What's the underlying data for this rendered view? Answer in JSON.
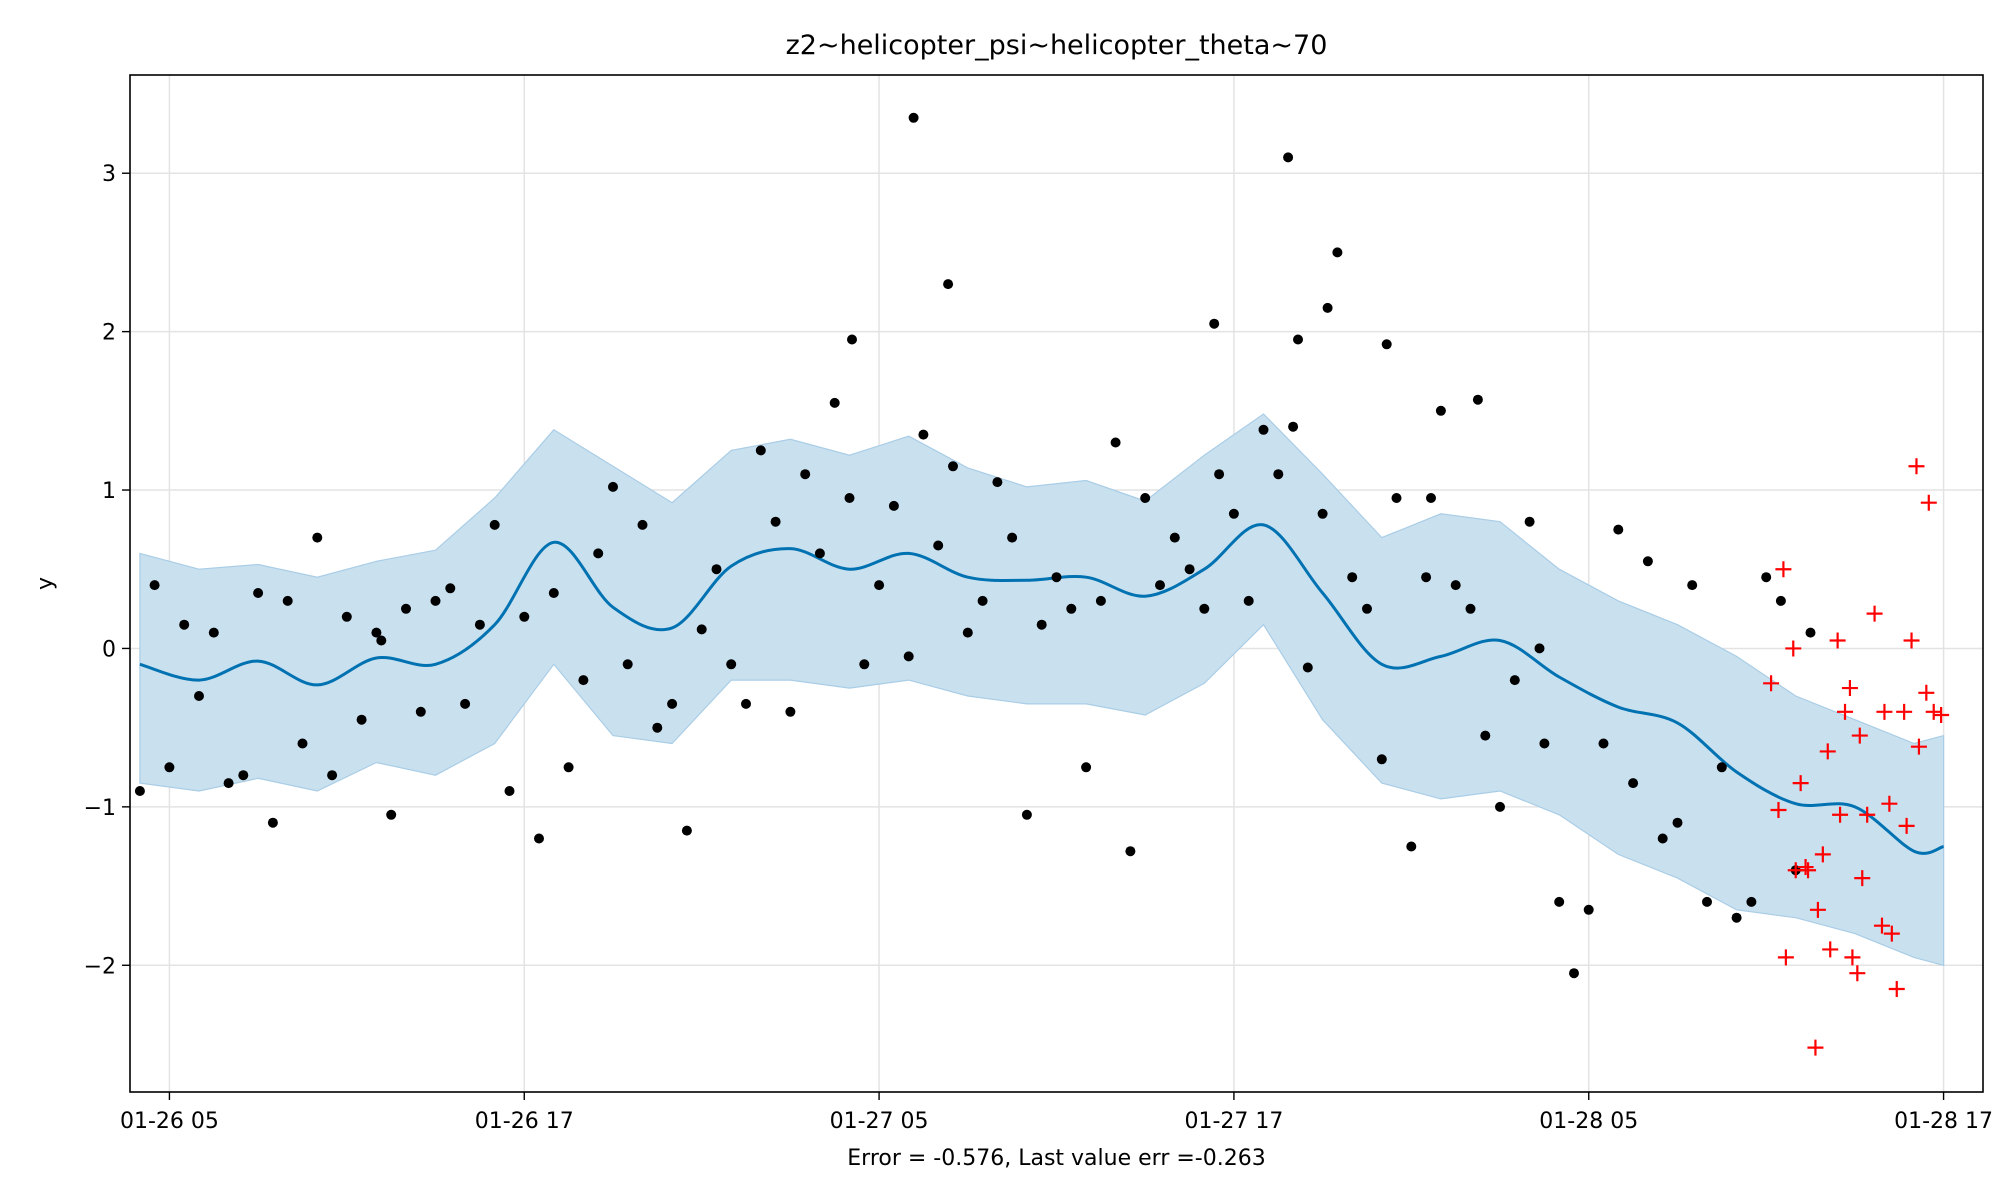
{
  "chart_data": {
    "type": "line",
    "title": "z2~helicopter_psi~helicopter_theta~70",
    "xlabel": "Error = -0.576, Last value err =-0.263",
    "ylabel": "y",
    "x_ticks": [
      "01-26 05",
      "01-26 17",
      "01-27 05",
      "01-27 17",
      "01-28 05",
      "01-28 17"
    ],
    "y_ticks": [
      -2,
      -1,
      0,
      1,
      2,
      3
    ],
    "y_tick_labels": [
      "−2",
      "−1",
      "0",
      "1",
      "2",
      "3"
    ],
    "x_range": [
      "01-26 03:40",
      "01-28 18:20"
    ],
    "ylim": [
      -2.8,
      3.62
    ],
    "grid": true,
    "colors": {
      "forecast_line": "#0072B2",
      "uncertainty_band": "#c9e0ef",
      "uncertainty_edge": "#a9cde6",
      "history_points": "#000000",
      "future_points": "#ff0000",
      "grid": "#e3e3e3"
    },
    "series": [
      {
        "role": "forecast",
        "style": "line",
        "x": [
          "01-26 04:00",
          "01-26 06:00",
          "01-26 08:00",
          "01-26 10:00",
          "01-26 12:00",
          "01-26 14:00",
          "01-26 16:00",
          "01-26 18:00",
          "01-26 20:00",
          "01-26 22:00",
          "01-27 00:00",
          "01-27 02:00",
          "01-27 04:00",
          "01-27 06:00",
          "01-27 08:00",
          "01-27 10:00",
          "01-27 12:00",
          "01-27 14:00",
          "01-27 16:00",
          "01-27 18:00",
          "01-27 20:00",
          "01-27 22:00",
          "01-28 00:00",
          "01-28 02:00",
          "01-28 04:00",
          "01-28 06:00",
          "01-28 08:00",
          "01-28 10:00",
          "01-28 12:00",
          "01-28 14:00",
          "01-28 16:00",
          "01-28 17:00"
        ],
        "y": [
          -0.1,
          -0.2,
          -0.08,
          -0.23,
          -0.06,
          -0.1,
          0.15,
          0.67,
          0.26,
          0.13,
          0.52,
          0.63,
          0.5,
          0.6,
          0.45,
          0.43,
          0.45,
          0.33,
          0.5,
          0.78,
          0.35,
          -0.1,
          -0.05,
          0.05,
          -0.18,
          -0.37,
          -0.47,
          -0.78,
          -0.98,
          -1.0,
          -1.28,
          -1.25
        ]
      },
      {
        "role": "uncertainty",
        "style": "band",
        "x": [
          "01-26 04:00",
          "01-26 06:00",
          "01-26 08:00",
          "01-26 10:00",
          "01-26 12:00",
          "01-26 14:00",
          "01-26 16:00",
          "01-26 18:00",
          "01-26 20:00",
          "01-26 22:00",
          "01-27 00:00",
          "01-27 02:00",
          "01-27 04:00",
          "01-27 06:00",
          "01-27 08:00",
          "01-27 10:00",
          "01-27 12:00",
          "01-27 14:00",
          "01-27 16:00",
          "01-27 18:00",
          "01-27 20:00",
          "01-27 22:00",
          "01-28 00:00",
          "01-28 02:00",
          "01-28 04:00",
          "01-28 06:00",
          "01-28 08:00",
          "01-28 10:00",
          "01-28 12:00",
          "01-28 14:00",
          "01-28 16:00",
          "01-28 17:00"
        ],
        "upper": [
          0.6,
          0.5,
          0.53,
          0.45,
          0.55,
          0.62,
          0.95,
          1.38,
          1.15,
          0.92,
          1.25,
          1.32,
          1.22,
          1.34,
          1.14,
          1.02,
          1.06,
          0.93,
          1.22,
          1.48,
          1.1,
          0.7,
          0.85,
          0.8,
          0.5,
          0.3,
          0.15,
          -0.05,
          -0.3,
          -0.45,
          -0.6,
          -0.55
        ],
        "lower": [
          -0.85,
          -0.9,
          -0.82,
          -0.9,
          -0.72,
          -0.8,
          -0.6,
          -0.1,
          -0.55,
          -0.6,
          -0.2,
          -0.2,
          -0.25,
          -0.2,
          -0.3,
          -0.35,
          -0.35,
          -0.42,
          -0.22,
          0.15,
          -0.45,
          -0.85,
          -0.95,
          -0.9,
          -1.05,
          -1.3,
          -1.45,
          -1.65,
          -1.7,
          -1.8,
          -1.95,
          -2.0
        ]
      },
      {
        "role": "history",
        "style": "points",
        "x": [
          "01-26 04:00",
          "01-26 04:30",
          "01-26 05:00",
          "01-26 05:30",
          "01-26 06:00",
          "01-26 06:30",
          "01-26 07:00",
          "01-26 07:30",
          "01-26 08:00",
          "01-26 08:30",
          "01-26 09:00",
          "01-26 09:30",
          "01-26 10:00",
          "01-26 10:30",
          "01-26 11:00",
          "01-26 11:30",
          "01-26 12:00",
          "01-26 12:30",
          "01-26 13:00",
          "01-26 13:30",
          "01-26 14:00",
          "01-26 14:30",
          "01-26 15:00",
          "01-26 15:30",
          "01-26 16:00",
          "01-26 16:30",
          "01-26 17:00",
          "01-26 17:30",
          "01-26 18:00",
          "01-26 18:30",
          "01-26 19:00",
          "01-26 19:30",
          "01-26 20:00",
          "01-26 20:30",
          "01-26 21:00",
          "01-26 21:30",
          "01-26 22:00",
          "01-26 22:30",
          "01-26 23:00",
          "01-26 23:30",
          "01-27 00:00",
          "01-27 00:30",
          "01-27 01:00",
          "01-27 01:30",
          "01-27 02:00",
          "01-27 02:30",
          "01-27 03:00",
          "01-27 03:30",
          "01-27 04:00",
          "01-27 04:30",
          "01-27 05:00",
          "01-27 05:30",
          "01-27 06:00",
          "01-27 06:30",
          "01-27 07:00",
          "01-27 07:30",
          "01-27 08:00",
          "01-27 08:30",
          "01-27 09:00",
          "01-27 09:30",
          "01-27 10:00",
          "01-27 10:30",
          "01-27 11:00",
          "01-27 11:30",
          "01-27 12:00",
          "01-27 12:30",
          "01-27 13:00",
          "01-27 13:30",
          "01-27 14:00",
          "01-27 14:30",
          "01-27 15:00",
          "01-27 15:30",
          "01-27 16:00",
          "01-27 16:30",
          "01-27 17:00",
          "01-27 17:30",
          "01-27 18:00",
          "01-27 18:30",
          "01-27 19:00",
          "01-27 19:30",
          "01-27 20:00",
          "01-27 20:30",
          "01-27 21:00",
          "01-27 21:30",
          "01-27 22:00",
          "01-27 22:30",
          "01-27 23:00",
          "01-27 23:30",
          "01-28 00:00",
          "01-28 00:30",
          "01-28 01:00",
          "01-28 01:30",
          "01-28 02:00",
          "01-28 02:30",
          "01-28 03:00",
          "01-28 03:30",
          "01-28 04:00",
          "01-28 04:30",
          "01-28 05:00",
          "01-28 05:30",
          "01-28 06:00",
          "01-28 06:30",
          "01-28 07:00",
          "01-28 07:30",
          "01-28 08:00",
          "01-28 08:30",
          "01-28 09:00",
          "01-28 09:30",
          "01-28 10:00",
          "01-28 10:30",
          "01-28 11:00",
          "01-28 11:30",
          "01-28 12:00",
          "01-28 12:30",
          "01-28 01:15",
          "01-27 04:05",
          "01-27 18:50",
          "01-26 12:10",
          "01-27 20:10",
          "01-27 16:20",
          "01-27 19:10",
          "01-27 06:10",
          "01-27 07:20",
          "01-27 22:10",
          "01-27 23:40",
          "01-28 03:20"
        ],
        "y": [
          -0.9,
          0.4,
          -0.75,
          0.15,
          -0.3,
          0.1,
          -0.85,
          -0.8,
          0.35,
          -1.1,
          0.3,
          -0.6,
          0.7,
          -0.8,
          0.2,
          -0.45,
          0.1,
          -1.05,
          0.25,
          -0.4,
          0.3,
          0.38,
          -0.35,
          0.15,
          0.78,
          -0.9,
          0.2,
          -1.2,
          0.35,
          -0.75,
          -0.2,
          0.6,
          1.02,
          -0.1,
          0.78,
          -0.5,
          -0.35,
          -1.15,
          0.12,
          0.5,
          -0.1,
          -0.35,
          1.25,
          0.8,
          -0.4,
          1.1,
          0.6,
          1.55,
          0.95,
          -0.1,
          0.4,
          0.9,
          -0.05,
          1.35,
          0.65,
          1.15,
          0.1,
          0.3,
          1.05,
          0.7,
          -1.05,
          0.15,
          0.45,
          0.25,
          -0.75,
          0.3,
          1.3,
          -1.28,
          0.95,
          0.4,
          0.7,
          0.5,
          0.25,
          1.1,
          0.85,
          0.3,
          1.38,
          1.1,
          1.4,
          -0.12,
          0.85,
          2.5,
          0.45,
          0.25,
          -0.7,
          0.95,
          -1.25,
          0.45,
          1.5,
          0.4,
          0.25,
          -0.55,
          -1.0,
          -0.2,
          0.8,
          -0.6,
          -1.6,
          -2.05,
          -1.65,
          -0.6,
          0.75,
          -0.85,
          0.55,
          -1.2,
          -1.1,
          0.4,
          -1.6,
          -0.75,
          -1.7,
          -1.6,
          0.45,
          0.3,
          -1.4,
          0.1,
          1.57,
          1.95,
          3.1,
          0.05,
          2.15,
          2.05,
          1.95,
          3.35,
          2.3,
          1.92,
          0.95,
          0.0
        ]
      },
      {
        "role": "future",
        "style": "crosses",
        "x": [
          "01-28 11:10",
          "01-28 11:25",
          "01-28 11:40",
          "01-28 11:55",
          "01-28 12:10",
          "01-28 12:25",
          "01-28 12:40",
          "01-28 12:55",
          "01-28 13:10",
          "01-28 13:25",
          "01-28 13:40",
          "01-28 13:55",
          "01-28 14:10",
          "01-28 14:25",
          "01-28 14:40",
          "01-28 14:55",
          "01-28 15:10",
          "01-28 15:25",
          "01-28 15:40",
          "01-28 15:55",
          "01-28 16:10",
          "01-28 16:25",
          "01-28 16:40",
          "01-28 16:55",
          "01-28 12:00",
          "01-28 12:45",
          "01-28 13:30",
          "01-28 14:15",
          "01-28 15:00",
          "01-28 15:45",
          "01-28 16:30",
          "01-28 13:05",
          "01-28 14:05",
          "01-28 15:15",
          "01-28 16:05",
          "01-28 11:35",
          "01-28 12:20",
          "01-28 13:50"
        ],
        "y": [
          -0.22,
          -1.02,
          -1.95,
          0.0,
          -0.85,
          -1.4,
          -2.52,
          -1.3,
          -1.9,
          0.05,
          -0.4,
          -1.95,
          -0.55,
          -1.05,
          0.22,
          -1.75,
          -0.98,
          -2.15,
          -0.4,
          0.05,
          -0.62,
          -0.28,
          -0.4,
          -0.42,
          -1.4,
          -1.65,
          -1.05,
          -1.45,
          -0.4,
          -1.12,
          0.92,
          -0.65,
          -2.05,
          -1.8,
          1.15,
          0.5,
          -1.38,
          -0.25
        ]
      }
    ]
  }
}
